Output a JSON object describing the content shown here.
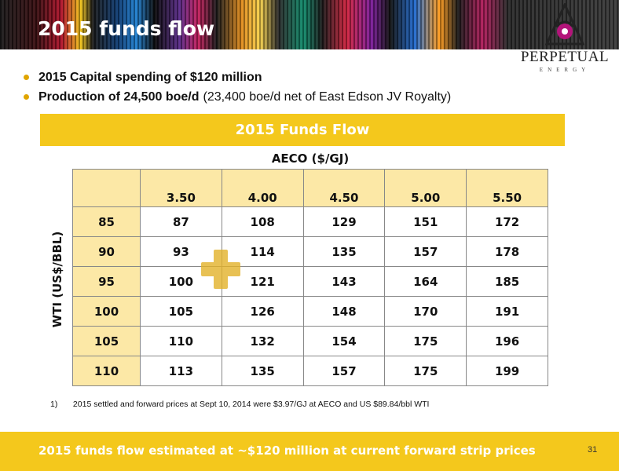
{
  "header": {
    "title": "2015 funds flow",
    "logo": {
      "name": "PERPETUAL",
      "sub": "ENERGY"
    }
  },
  "bullets": [
    {
      "strong": "2015 Capital spending of $120 million",
      "normal": ""
    },
    {
      "strong": "Production of 24,500 boe/d",
      "normal": "(23,400 boe/d net of East Edson JV Royalty)"
    }
  ],
  "banner": "2015 Funds Flow",
  "table": {
    "col_axis_label": "AECO ($/GJ)",
    "row_axis_label": "WTI (US$/BBL)",
    "columns": [
      "3.50",
      "4.00",
      "4.50",
      "5.00",
      "5.50"
    ],
    "rows": [
      {
        "label": "85",
        "values": [
          "87",
          "108",
          "129",
          "151",
          "172"
        ]
      },
      {
        "label": "90",
        "values": [
          "93",
          "114",
          "135",
          "157",
          "178"
        ]
      },
      {
        "label": "95",
        "values": [
          "100",
          "121",
          "143",
          "164",
          "185"
        ]
      },
      {
        "label": "100",
        "values": [
          "105",
          "126",
          "148",
          "170",
          "191"
        ]
      },
      {
        "label": "105",
        "values": [
          "110",
          "132",
          "154",
          "175",
          "196"
        ]
      },
      {
        "label": "110",
        "values": [
          "113",
          "135",
          "157",
          "175",
          "199"
        ]
      }
    ]
  },
  "footnote": {
    "number": "1)",
    "text": "2015 settled and forward prices at Sept 10, 2014 were $3.97/GJ at AECO and US $89.84/bbl WTI"
  },
  "footer": {
    "text": "2015 funds flow estimated at ~$120 million at current forward strip prices",
    "page": "31"
  },
  "colors": {
    "accent_yellow": "#f4c81c",
    "table_header_fill": "#fce8a6",
    "logo_magenta": "#b3147a"
  }
}
